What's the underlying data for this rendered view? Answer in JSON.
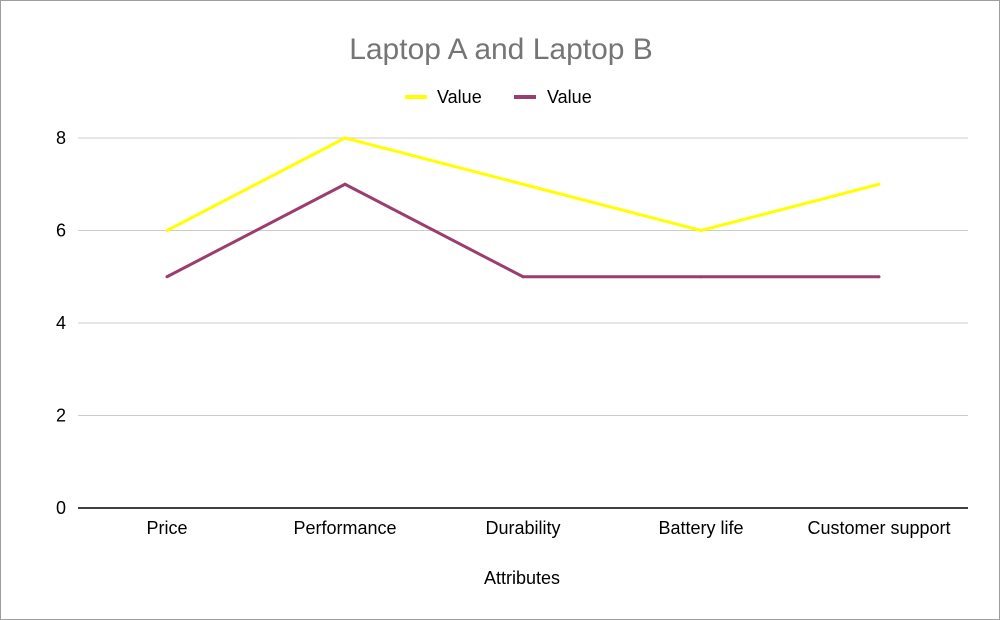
{
  "chart_data": {
    "type": "line",
    "title": "Laptop A and Laptop B",
    "xlabel": "Attributes",
    "ylabel": "",
    "categories": [
      "Price",
      "Performance",
      "Durability",
      "Battery life",
      "Customer support"
    ],
    "series": [
      {
        "name": "Value",
        "color": "#ffff00",
        "values": [
          6,
          8,
          7,
          6,
          7
        ]
      },
      {
        "name": "Value",
        "color": "#9b3d6e",
        "values": [
          5,
          7,
          5,
          5,
          5
        ]
      }
    ],
    "ylim": [
      0,
      8
    ],
    "yticks": [
      "0",
      "2",
      "4",
      "6",
      "8"
    ],
    "grid": true,
    "legend_position": "top"
  }
}
